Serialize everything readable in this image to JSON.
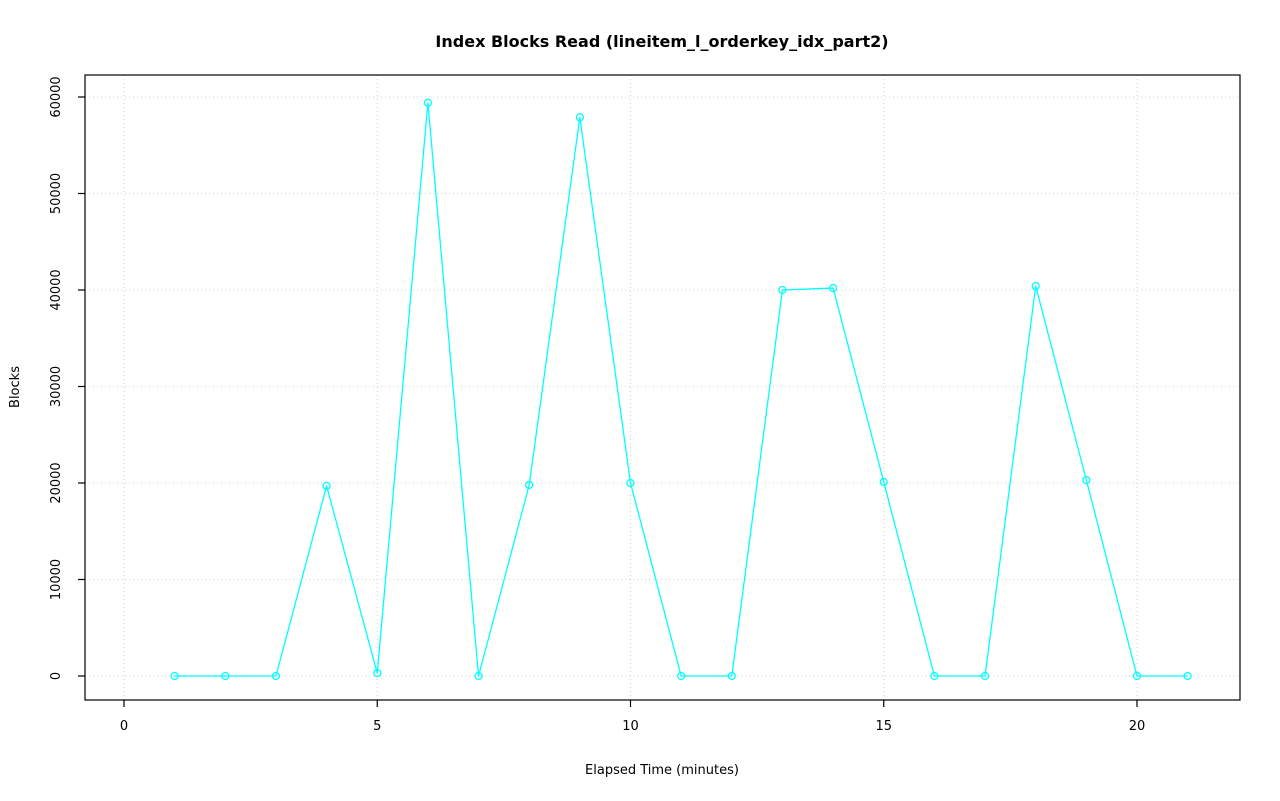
{
  "chart_data": {
    "type": "line",
    "title": "Index Blocks Read (lineitem_l_orderkey_idx_part2)",
    "xlabel": "Elapsed Time (minutes)",
    "ylabel": "Blocks",
    "x": [
      1,
      2,
      3,
      4,
      5,
      6,
      7,
      8,
      9,
      10,
      11,
      12,
      13,
      14,
      15,
      16,
      17,
      18,
      19,
      20,
      21
    ],
    "values": [
      0,
      0,
      0,
      19700,
      300,
      59400,
      0,
      19800,
      57900,
      20000,
      0,
      0,
      40000,
      40200,
      20100,
      0,
      0,
      40400,
      20300,
      0,
      0
    ],
    "xticks": [
      0,
      5,
      10,
      15,
      20
    ],
    "yticks": [
      0,
      10000,
      20000,
      30000,
      40000,
      50000,
      60000
    ],
    "xlim": [
      0,
      21
    ],
    "ylim": [
      0,
      60000
    ],
    "grid": true,
    "legend": "none",
    "marker": "open-circle",
    "colors": {
      "series": "#00FFFF",
      "grid": "#D4D4D4",
      "axis": "#000000",
      "background": "#FFFFFF"
    }
  }
}
